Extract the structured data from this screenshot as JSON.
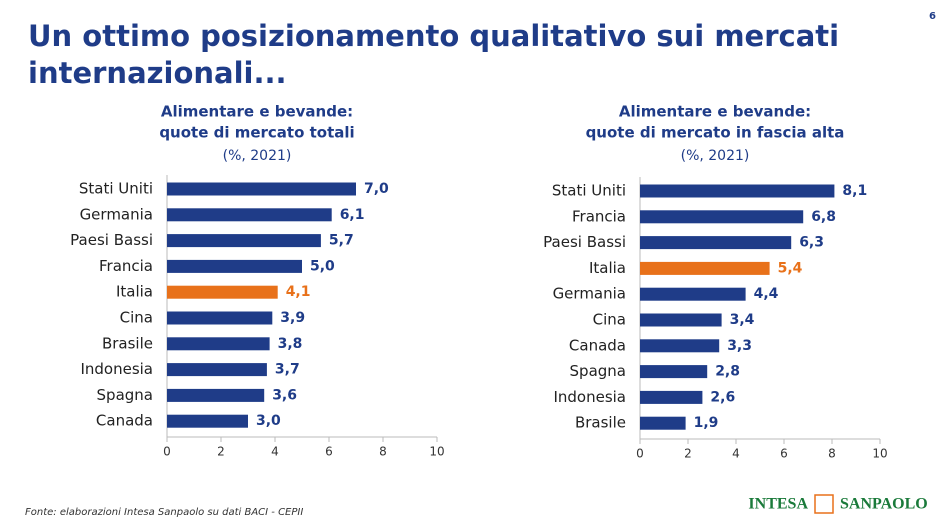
{
  "page": {
    "title_lines": [
      "Un ottimo posizionamento qualitativo sui mercati",
      "internazionali..."
    ],
    "number": 6,
    "source": "Fonte: elaborazioni Intesa Sanpaolo su dati BACI - CEPII",
    "logo": [
      "INTESA",
      "SANPAOLO"
    ]
  },
  "chart_data": [
    {
      "type": "hbar",
      "title": "Alimentare e bevande:",
      "subtitle": "quote di mercato totali",
      "note": "(%, 2021)",
      "categories": [
        "Stati Uniti",
        "Germania",
        "Paesi Bassi",
        "Francia",
        "Italia",
        "Cina",
        "Brasile",
        "Indonesia",
        "Spagna",
        "Canada"
      ],
      "values": [
        7.0,
        6.1,
        5.7,
        5.0,
        4.1,
        3.9,
        3.8,
        3.7,
        3.6,
        3.0
      ],
      "value_labels": [
        "7,0",
        "6,1",
        "5,7",
        "5,0",
        "4,1",
        "3,9",
        "3,8",
        "3,7",
        "3,6",
        "3,0"
      ],
      "colors": [
        "#1f3c88",
        "#1f3c88",
        "#1f3c88",
        "#1f3c88",
        "#e8711a",
        "#1f3c88",
        "#1f3c88",
        "#1f3c88",
        "#1f3c88",
        "#1f3c88"
      ],
      "xlim": [
        0,
        10
      ],
      "xticks": [
        0,
        2,
        4,
        6,
        8,
        10
      ]
    },
    {
      "type": "hbar",
      "title": "Alimentare e bevande:",
      "subtitle": "quote di mercato in fascia alta",
      "note": "(%, 2021)",
      "categories": [
        "Stati Uniti",
        "Francia",
        "Paesi Bassi",
        "Italia",
        "Germania",
        "Cina",
        "Canada",
        "Spagna",
        "Indonesia",
        "Brasile"
      ],
      "values": [
        8.1,
        6.8,
        6.3,
        5.4,
        4.4,
        3.4,
        3.3,
        2.8,
        2.6,
        1.9
      ],
      "value_labels": [
        "8,1",
        "6,8",
        "6,3",
        "5,4",
        "4,4",
        "3,4",
        "3,3",
        "2,8",
        "2,6",
        "1,9"
      ],
      "colors": [
        "#1f3c88",
        "#1f3c88",
        "#1f3c88",
        "#e8711a",
        "#1f3c88",
        "#1f3c88",
        "#1f3c88",
        "#1f3c88",
        "#1f3c88",
        "#1f3c88"
      ],
      "xlim": [
        0,
        10
      ],
      "xticks": [
        0,
        2,
        4,
        6,
        8,
        10
      ]
    }
  ]
}
